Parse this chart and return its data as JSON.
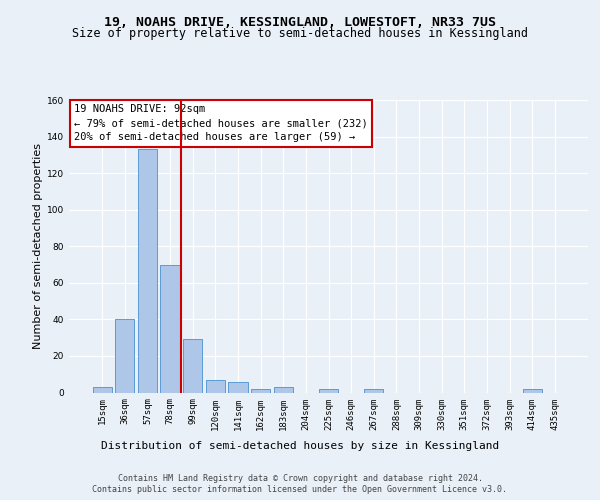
{
  "title": "19, NOAHS DRIVE, KESSINGLAND, LOWESTOFT, NR33 7US",
  "subtitle": "Size of property relative to semi-detached houses in Kessingland",
  "xlabel": "Distribution of semi-detached houses by size in Kessingland",
  "ylabel": "Number of semi-detached properties",
  "categories": [
    "15sqm",
    "36sqm",
    "57sqm",
    "78sqm",
    "99sqm",
    "120sqm",
    "141sqm",
    "162sqm",
    "183sqm",
    "204sqm",
    "225sqm",
    "246sqm",
    "267sqm",
    "288sqm",
    "309sqm",
    "330sqm",
    "351sqm",
    "372sqm",
    "393sqm",
    "414sqm",
    "435sqm"
  ],
  "values": [
    3,
    40,
    133,
    70,
    29,
    7,
    6,
    2,
    3,
    0,
    2,
    0,
    2,
    0,
    0,
    0,
    0,
    0,
    0,
    2,
    0
  ],
  "bar_color": "#aec6e8",
  "bar_edge_color": "#5b9bd5",
  "vline_color": "#cc0000",
  "annotation_text": "19 NOAHS DRIVE: 92sqm\n← 79% of semi-detached houses are smaller (232)\n20% of semi-detached houses are larger (59) →",
  "annotation_box_color": "#ffffff",
  "annotation_box_edge": "#cc0000",
  "ylim": [
    0,
    160
  ],
  "yticks": [
    0,
    20,
    40,
    60,
    80,
    100,
    120,
    140,
    160
  ],
  "footer_line1": "Contains HM Land Registry data © Crown copyright and database right 2024.",
  "footer_line2": "Contains public sector information licensed under the Open Government Licence v3.0.",
  "bg_color": "#eaf0f8",
  "plot_bg_color": "#eaf0f8",
  "grid_color": "#ffffff",
  "title_fontsize": 9.5,
  "subtitle_fontsize": 8.5,
  "axis_label_fontsize": 8,
  "tick_fontsize": 6.5,
  "footer_fontsize": 6,
  "annotation_fontsize": 7.5
}
